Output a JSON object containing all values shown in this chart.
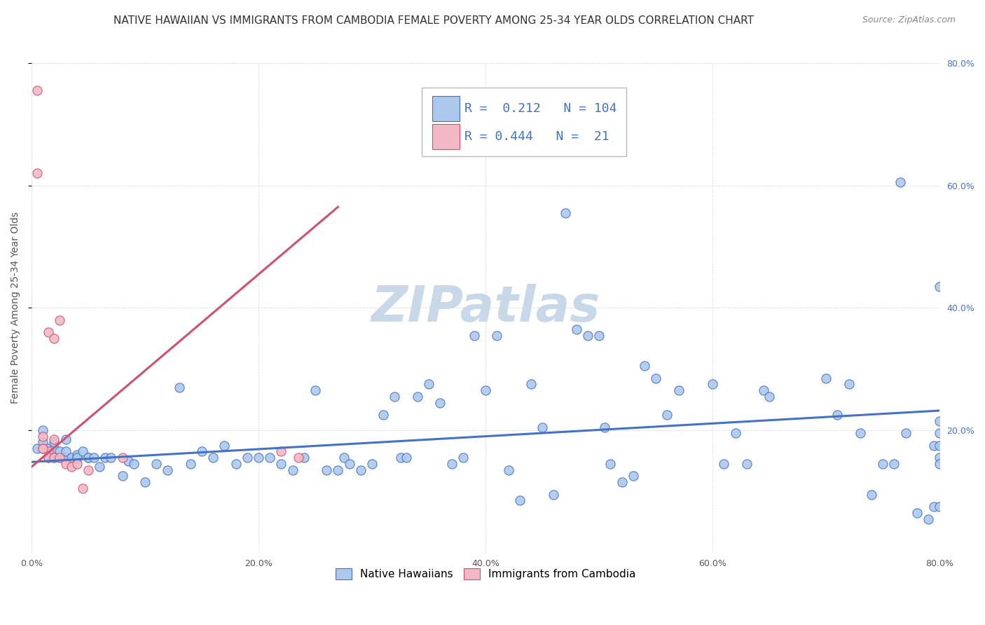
{
  "title": "NATIVE HAWAIIAN VS IMMIGRANTS FROM CAMBODIA FEMALE POVERTY AMONG 25-34 YEAR OLDS CORRELATION CHART",
  "source": "Source: ZipAtlas.com",
  "ylabel": "Female Poverty Among 25-34 Year Olds",
  "xlim": [
    0.0,
    0.8
  ],
  "ylim": [
    0.0,
    0.8
  ],
  "xtick_labels": [
    "0.0%",
    "20.0%",
    "40.0%",
    "60.0%",
    "80.0%"
  ],
  "xtick_vals": [
    0.0,
    0.2,
    0.4,
    0.6,
    0.8
  ],
  "right_ytick_labels": [
    "20.0%",
    "40.0%",
    "60.0%",
    "80.0%"
  ],
  "right_ytick_vals": [
    0.2,
    0.4,
    0.6,
    0.8
  ],
  "blue_fill": "#adc8ed",
  "blue_edge": "#4472c4",
  "pink_fill": "#f2b8c6",
  "pink_edge": "#d05070",
  "background_color": "#ffffff",
  "watermark": "ZIPatlas",
  "legend_blue_label": "Native Hawaiians",
  "legend_pink_label": "Immigrants from Cambodia",
  "R_blue": "0.212",
  "N_blue": "104",
  "R_pink": "0.444",
  "N_pink": "21",
  "blue_scatter_x": [
    0.005,
    0.01,
    0.01,
    0.015,
    0.015,
    0.02,
    0.02,
    0.02,
    0.025,
    0.025,
    0.03,
    0.03,
    0.03,
    0.035,
    0.04,
    0.04,
    0.04,
    0.045,
    0.05,
    0.05,
    0.055,
    0.06,
    0.065,
    0.07,
    0.08,
    0.085,
    0.09,
    0.1,
    0.11,
    0.12,
    0.13,
    0.14,
    0.15,
    0.16,
    0.17,
    0.18,
    0.19,
    0.2,
    0.21,
    0.22,
    0.23,
    0.24,
    0.25,
    0.26,
    0.27,
    0.275,
    0.28,
    0.29,
    0.3,
    0.31,
    0.32,
    0.325,
    0.33,
    0.34,
    0.35,
    0.36,
    0.37,
    0.38,
    0.39,
    0.4,
    0.41,
    0.42,
    0.43,
    0.44,
    0.45,
    0.46,
    0.47,
    0.48,
    0.49,
    0.5,
    0.505,
    0.51,
    0.52,
    0.53,
    0.54,
    0.55,
    0.56,
    0.57,
    0.6,
    0.61,
    0.62,
    0.63,
    0.645,
    0.65,
    0.7,
    0.71,
    0.72,
    0.73,
    0.74,
    0.75,
    0.76,
    0.765,
    0.77,
    0.78,
    0.79,
    0.795,
    0.795,
    0.8,
    0.8,
    0.8,
    0.8,
    0.8,
    0.8,
    0.8
  ],
  "blue_scatter_y": [
    0.17,
    0.2,
    0.18,
    0.17,
    0.155,
    0.155,
    0.17,
    0.18,
    0.155,
    0.165,
    0.155,
    0.165,
    0.185,
    0.155,
    0.155,
    0.16,
    0.155,
    0.165,
    0.155,
    0.155,
    0.155,
    0.14,
    0.155,
    0.155,
    0.125,
    0.15,
    0.145,
    0.115,
    0.145,
    0.135,
    0.27,
    0.145,
    0.165,
    0.155,
    0.175,
    0.145,
    0.155,
    0.155,
    0.155,
    0.145,
    0.135,
    0.155,
    0.265,
    0.135,
    0.135,
    0.155,
    0.145,
    0.135,
    0.145,
    0.225,
    0.255,
    0.155,
    0.155,
    0.255,
    0.275,
    0.245,
    0.145,
    0.155,
    0.355,
    0.265,
    0.355,
    0.135,
    0.085,
    0.275,
    0.205,
    0.095,
    0.555,
    0.365,
    0.355,
    0.355,
    0.205,
    0.145,
    0.115,
    0.125,
    0.305,
    0.285,
    0.225,
    0.265,
    0.275,
    0.145,
    0.195,
    0.145,
    0.265,
    0.255,
    0.285,
    0.225,
    0.275,
    0.195,
    0.095,
    0.145,
    0.145,
    0.605,
    0.195,
    0.065,
    0.055,
    0.175,
    0.075,
    0.075,
    0.155,
    0.175,
    0.195,
    0.145,
    0.435,
    0.215
  ],
  "pink_scatter_x": [
    0.005,
    0.01,
    0.01,
    0.015,
    0.015,
    0.02,
    0.02,
    0.025,
    0.03,
    0.035,
    0.04,
    0.045,
    0.05,
    0.005,
    0.01,
    0.015,
    0.02,
    0.025,
    0.08,
    0.22,
    0.235
  ],
  "pink_scatter_y": [
    0.755,
    0.19,
    0.17,
    0.165,
    0.155,
    0.155,
    0.185,
    0.155,
    0.145,
    0.14,
    0.145,
    0.105,
    0.135,
    0.62,
    0.17,
    0.36,
    0.35,
    0.38,
    0.155,
    0.165,
    0.155
  ],
  "blue_trend_x": [
    0.0,
    0.8
  ],
  "blue_trend_y": [
    0.148,
    0.232
  ],
  "pink_trend_x": [
    0.0,
    0.27
  ],
  "pink_trend_y": [
    0.14,
    0.565
  ],
  "title_fontsize": 11,
  "source_fontsize": 9,
  "axis_label_fontsize": 10,
  "tick_fontsize": 9,
  "stat_fontsize": 13,
  "watermark_fontsize": 52,
  "watermark_color": "#c8d8e8",
  "stat_label_color": "#4472c4",
  "grid_color": "#d8d8d8"
}
